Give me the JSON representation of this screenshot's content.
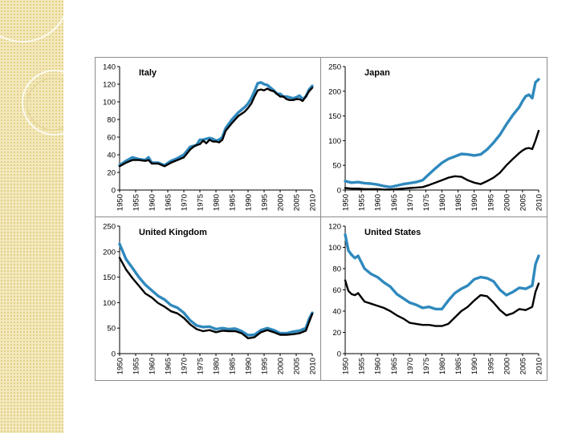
{
  "colors": {
    "series_a": "#2f89bd",
    "series_b": "#000000",
    "sidebar": "#f3e9bd",
    "frame": "#8c8c8c"
  },
  "chart_data": [
    {
      "type": "line",
      "title": "Italy",
      "ylim": [
        0,
        140
      ],
      "yticks": [
        0,
        20,
        40,
        60,
        80,
        100,
        120,
        140
      ],
      "xlim": [
        1950,
        2010
      ],
      "xticks": [
        1950,
        1955,
        1960,
        1965,
        1970,
        1975,
        1980,
        1985,
        1990,
        1995,
        2000,
        2005,
        2010
      ],
      "series": [
        {
          "name": "series_a",
          "color": "#2f89bd",
          "x": [
            1950,
            1952,
            1954,
            1956,
            1958,
            1959,
            1960,
            1962,
            1964,
            1966,
            1968,
            1970,
            1972,
            1973,
            1974,
            1975,
            1976,
            1977,
            1978,
            1979,
            1980,
            1981,
            1982,
            1983,
            1985,
            1987,
            1989,
            1990,
            1991,
            1992,
            1993,
            1994,
            1995,
            1996,
            1997,
            1998,
            1999,
            2000,
            2001,
            2002,
            2003,
            2004,
            2005,
            2006,
            2007,
            2008,
            2009,
            2010
          ],
          "values": [
            28,
            33,
            37,
            35,
            34,
            37,
            31,
            31,
            28,
            33,
            36,
            40,
            49,
            50,
            51,
            57,
            57,
            58,
            59,
            58,
            56,
            57,
            60,
            70,
            80,
            88,
            94,
            98,
            104,
            112,
            121,
            122,
            120,
            119,
            116,
            113,
            109,
            109,
            106,
            106,
            105,
            104,
            105,
            107,
            103,
            106,
            114,
            118
          ]
        },
        {
          "name": "series_b",
          "color": "#000000",
          "x": [
            1950,
            1952,
            1954,
            1956,
            1958,
            1959,
            1960,
            1962,
            1964,
            1966,
            1968,
            1970,
            1972,
            1973,
            1974,
            1975,
            1976,
            1977,
            1978,
            1979,
            1980,
            1981,
            1982,
            1983,
            1985,
            1987,
            1989,
            1990,
            1991,
            1992,
            1993,
            1994,
            1995,
            1996,
            1997,
            1998,
            1999,
            2000,
            2001,
            2002,
            2003,
            2004,
            2005,
            2006,
            2007,
            2008,
            2009,
            2010
          ],
          "values": [
            27,
            31,
            34,
            34,
            33,
            34,
            30,
            30,
            27,
            31,
            34,
            37,
            46,
            49,
            51,
            52,
            56,
            53,
            57,
            55,
            55,
            54,
            57,
            67,
            76,
            84,
            89,
            93,
            98,
            106,
            113,
            114,
            113,
            115,
            113,
            112,
            109,
            106,
            106,
            103,
            102,
            102,
            103,
            103,
            101,
            106,
            112,
            116
          ]
        }
      ]
    },
    {
      "type": "line",
      "title": "Japan",
      "ylim": [
        0,
        250
      ],
      "yticks": [
        0,
        50,
        100,
        150,
        200,
        250
      ],
      "xlim": [
        1950,
        2010
      ],
      "xticks": [
        1950,
        1955,
        1960,
        1965,
        1970,
        1975,
        1980,
        1985,
        1990,
        1995,
        2000,
        2005,
        2010
      ],
      "series": [
        {
          "name": "series_a",
          "color": "#2f89bd",
          "x": [
            1950,
            1952,
            1954,
            1956,
            1958,
            1960,
            1962,
            1964,
            1966,
            1968,
            1970,
            1972,
            1974,
            1976,
            1978,
            1980,
            1982,
            1984,
            1986,
            1988,
            1990,
            1992,
            1994,
            1996,
            1998,
            2000,
            2002,
            2004,
            2005,
            2006,
            2007,
            2008,
            2009,
            2010
          ],
          "values": [
            18,
            15,
            16,
            14,
            13,
            11,
            8,
            6,
            9,
            12,
            14,
            16,
            20,
            32,
            44,
            55,
            63,
            68,
            73,
            72,
            70,
            72,
            82,
            96,
            112,
            133,
            152,
            168,
            180,
            190,
            193,
            186,
            218,
            224
          ]
        },
        {
          "name": "series_b",
          "color": "#000000",
          "x": [
            1950,
            1952,
            1954,
            1956,
            1958,
            1960,
            1962,
            1964,
            1966,
            1968,
            1970,
            1972,
            1974,
            1976,
            1978,
            1980,
            1982,
            1984,
            1986,
            1988,
            1990,
            1992,
            1994,
            1996,
            1998,
            2000,
            2002,
            2004,
            2005,
            2006,
            2007,
            2008,
            2009,
            2010
          ],
          "values": [
            4,
            3,
            3,
            2,
            2,
            2,
            1,
            1,
            2,
            3,
            4,
            5,
            6,
            10,
            15,
            20,
            25,
            28,
            27,
            20,
            15,
            12,
            18,
            25,
            35,
            50,
            63,
            75,
            80,
            84,
            85,
            83,
            100,
            120
          ]
        }
      ]
    },
    {
      "type": "line",
      "title": "United Kingdom",
      "ylim": [
        0,
        250
      ],
      "yticks": [
        0,
        50,
        100,
        150,
        200,
        250
      ],
      "xlim": [
        1950,
        2010
      ],
      "xticks": [
        1950,
        1955,
        1960,
        1965,
        1970,
        1975,
        1980,
        1985,
        1990,
        1995,
        2000,
        2005,
        2010
      ],
      "series": [
        {
          "name": "series_a",
          "color": "#2f89bd",
          "x": [
            1950,
            1952,
            1954,
            1956,
            1958,
            1960,
            1962,
            1964,
            1966,
            1968,
            1970,
            1972,
            1974,
            1976,
            1978,
            1980,
            1982,
            1984,
            1986,
            1988,
            1990,
            1992,
            1994,
            1996,
            1998,
            2000,
            2002,
            2004,
            2006,
            2008,
            2009,
            2010
          ],
          "values": [
            215,
            185,
            168,
            150,
            135,
            124,
            113,
            106,
            95,
            90,
            80,
            65,
            55,
            52,
            53,
            48,
            50,
            48,
            49,
            44,
            36,
            37,
            46,
            50,
            46,
            40,
            40,
            43,
            45,
            50,
            68,
            80
          ]
        },
        {
          "name": "series_b",
          "color": "#000000",
          "x": [
            1950,
            1952,
            1954,
            1956,
            1958,
            1960,
            1962,
            1964,
            1966,
            1968,
            1970,
            1972,
            1974,
            1976,
            1978,
            1980,
            1982,
            1984,
            1986,
            1988,
            1990,
            1992,
            1994,
            1996,
            1998,
            2000,
            2002,
            2004,
            2006,
            2008,
            2009,
            2010
          ],
          "values": [
            188,
            165,
            148,
            133,
            118,
            110,
            99,
            92,
            83,
            79,
            70,
            57,
            48,
            44,
            46,
            42,
            45,
            44,
            44,
            40,
            30,
            32,
            42,
            46,
            42,
            37,
            37,
            38,
            40,
            45,
            62,
            78
          ]
        }
      ]
    },
    {
      "type": "line",
      "title": "United States",
      "ylim": [
        0,
        120
      ],
      "yticks": [
        0,
        20,
        40,
        60,
        80,
        100,
        120
      ],
      "xlim": [
        1950,
        2010
      ],
      "xticks": [
        1950,
        1955,
        1960,
        1965,
        1970,
        1975,
        1980,
        1985,
        1990,
        1995,
        2000,
        2005,
        2010
      ],
      "series": [
        {
          "name": "series_a",
          "color": "#2f89bd",
          "x": [
            1950,
            1951,
            1952,
            1953,
            1954,
            1956,
            1958,
            1960,
            1962,
            1964,
            1966,
            1968,
            1970,
            1972,
            1974,
            1976,
            1978,
            1980,
            1982,
            1984,
            1986,
            1988,
            1990,
            1992,
            1994,
            1996,
            1998,
            2000,
            2002,
            2004,
            2006,
            2008,
            2009,
            2010
          ],
          "values": [
            112,
            97,
            93,
            90,
            92,
            80,
            75,
            72,
            67,
            63,
            56,
            52,
            48,
            46,
            43,
            44,
            42,
            42,
            50,
            57,
            61,
            64,
            70,
            72,
            71,
            68,
            60,
            55,
            58,
            62,
            61,
            64,
            84,
            92
          ]
        },
        {
          "name": "series_b",
          "color": "#000000",
          "x": [
            1950,
            1951,
            1952,
            1953,
            1954,
            1956,
            1958,
            1960,
            1962,
            1964,
            1966,
            1968,
            1970,
            1972,
            1974,
            1976,
            1978,
            1980,
            1982,
            1984,
            1986,
            1988,
            1990,
            1992,
            1994,
            1996,
            1998,
            2000,
            2002,
            2004,
            2006,
            2008,
            2009,
            2010
          ],
          "values": [
            69,
            59,
            56,
            55,
            57,
            49,
            47,
            45,
            43,
            40,
            36,
            33,
            29,
            28,
            27,
            27,
            26,
            26,
            28,
            34,
            40,
            44,
            50,
            55,
            54,
            48,
            41,
            36,
            38,
            42,
            41,
            44,
            58,
            66
          ]
        }
      ]
    }
  ]
}
